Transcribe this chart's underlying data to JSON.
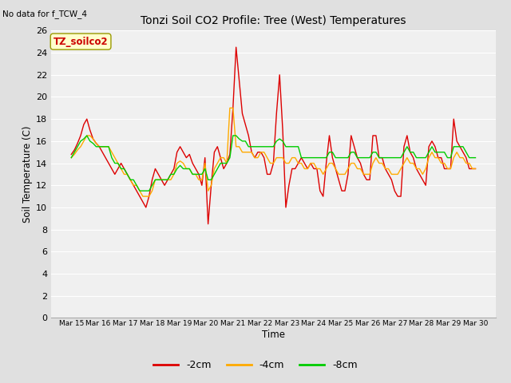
{
  "title": "Tonzi Soil CO2 Profile: Tree (West) Temperatures",
  "subtitle": "No data for f_TCW_4",
  "ylabel": "Soil Temperature (C)",
  "xlabel": "Time",
  "box_label": "TZ_soilco2",
  "ylim": [
    0,
    26
  ],
  "yticks": [
    0,
    2,
    4,
    6,
    8,
    10,
    12,
    14,
    16,
    18,
    20,
    22,
    24,
    26
  ],
  "xtick_labels": [
    "Mar 15",
    "Mar 16",
    "Mar 17",
    "Mar 18",
    "Mar 19",
    "Mar 20",
    "Mar 21",
    "Mar 22",
    "Mar 23",
    "Mar 24",
    "Mar 25",
    "Mar 26",
    "Mar 27",
    "Mar 28",
    "Mar 29",
    "Mar 30"
  ],
  "legend_entries": [
    "-2cm",
    "-4cm",
    "-8cm"
  ],
  "legend_colors": [
    "#dd0000",
    "#ffaa00",
    "#00cc00"
  ],
  "fig_bg_color": "#e0e0e0",
  "plot_bg_color": "#f0f0f0",
  "grid_color": "#ffffff",
  "line_width": 1.0,
  "series_2cm": [
    14.8,
    15.2,
    15.8,
    16.5,
    17.5,
    18.0,
    17.0,
    16.2,
    15.8,
    15.5,
    15.0,
    14.5,
    14.0,
    13.5,
    13.0,
    13.5,
    14.0,
    13.5,
    13.0,
    12.5,
    12.0,
    11.5,
    11.0,
    10.5,
    10.0,
    11.0,
    12.5,
    13.5,
    13.0,
    12.5,
    12.0,
    12.5,
    13.0,
    13.5,
    15.0,
    15.5,
    15.0,
    14.5,
    14.8,
    14.0,
    13.5,
    13.0,
    12.0,
    14.5,
    8.5,
    12.0,
    15.0,
    15.5,
    14.5,
    13.5,
    14.0,
    14.8,
    19.0,
    24.5,
    21.5,
    18.5,
    17.5,
    16.5,
    15.0,
    14.5,
    15.0,
    15.0,
    14.5,
    13.0,
    13.0,
    14.0,
    18.5,
    22.0,
    17.0,
    10.0,
    12.0,
    13.5,
    13.5,
    14.0,
    14.5,
    14.0,
    13.5,
    14.0,
    13.5,
    13.5,
    11.5,
    11.0,
    14.0,
    16.5,
    14.5,
    13.5,
    12.5,
    11.5,
    11.5,
    13.0,
    16.5,
    15.5,
    14.5,
    14.0,
    13.0,
    12.5,
    12.5,
    16.5,
    16.5,
    14.5,
    14.5,
    13.5,
    13.0,
    12.5,
    11.5,
    11.0,
    11.0,
    15.5,
    16.5,
    15.0,
    14.5,
    13.5,
    13.0,
    12.5,
    12.0,
    15.5,
    16.0,
    15.5,
    14.5,
    14.5,
    13.5,
    13.5,
    13.5,
    18.0,
    16.0,
    15.5,
    15.0,
    14.5,
    13.5,
    13.5,
    13.5
  ],
  "series_4cm": [
    14.5,
    14.8,
    15.2,
    15.5,
    16.0,
    16.5,
    16.5,
    16.2,
    15.8,
    15.5,
    15.5,
    15.5,
    15.5,
    15.0,
    14.5,
    14.0,
    13.5,
    13.0,
    13.0,
    12.5,
    12.0,
    12.0,
    11.5,
    11.0,
    11.0,
    11.0,
    11.5,
    12.5,
    12.5,
    12.5,
    12.5,
    12.5,
    12.5,
    13.0,
    14.0,
    14.2,
    14.0,
    13.5,
    13.5,
    13.0,
    13.0,
    12.5,
    12.5,
    14.0,
    11.5,
    12.0,
    13.5,
    14.0,
    14.5,
    14.5,
    14.0,
    19.0,
    19.0,
    15.5,
    15.5,
    15.0,
    15.0,
    15.0,
    15.0,
    14.5,
    14.5,
    15.0,
    15.0,
    14.5,
    14.0,
    14.0,
    14.5,
    14.5,
    14.5,
    14.0,
    14.0,
    14.5,
    14.5,
    14.0,
    14.0,
    13.5,
    13.5,
    14.0,
    14.0,
    13.5,
    13.5,
    13.0,
    13.5,
    14.0,
    14.0,
    13.5,
    13.0,
    13.0,
    13.0,
    13.5,
    14.0,
    14.0,
    13.5,
    13.5,
    13.0,
    13.0,
    13.0,
    14.0,
    14.5,
    14.0,
    14.0,
    13.5,
    13.5,
    13.0,
    13.0,
    13.0,
    13.5,
    14.0,
    14.5,
    14.0,
    14.0,
    13.5,
    13.5,
    13.0,
    13.5,
    14.5,
    15.0,
    14.5,
    14.5,
    14.0,
    14.0,
    13.5,
    13.5,
    14.5,
    15.0,
    14.5,
    14.5,
    14.0,
    14.0,
    13.5,
    13.5
  ],
  "series_8cm": [
    14.5,
    15.0,
    15.5,
    16.0,
    16.2,
    16.5,
    16.0,
    15.8,
    15.5,
    15.5,
    15.5,
    15.5,
    15.5,
    14.5,
    14.0,
    14.0,
    13.5,
    13.5,
    13.0,
    12.5,
    12.5,
    12.0,
    11.5,
    11.5,
    11.5,
    11.5,
    12.0,
    12.5,
    12.5,
    12.5,
    12.5,
    12.5,
    13.0,
    13.0,
    13.5,
    13.8,
    13.5,
    13.5,
    13.5,
    13.0,
    13.0,
    13.0,
    13.0,
    13.5,
    12.5,
    12.5,
    13.0,
    13.5,
    14.0,
    14.0,
    14.0,
    14.5,
    16.5,
    16.5,
    16.2,
    16.0,
    16.0,
    15.5,
    15.5,
    15.5,
    15.5,
    15.5,
    15.5,
    15.5,
    15.5,
    15.5,
    16.0,
    16.2,
    16.0,
    15.5,
    15.5,
    15.5,
    15.5,
    15.5,
    14.5,
    14.5,
    14.5,
    14.5,
    14.5,
    14.5,
    14.5,
    14.5,
    14.5,
    15.0,
    15.0,
    14.5,
    14.5,
    14.5,
    14.5,
    14.5,
    15.0,
    15.0,
    14.5,
    14.5,
    14.5,
    14.5,
    14.5,
    15.0,
    15.0,
    14.5,
    14.5,
    14.5,
    14.5,
    14.5,
    14.5,
    14.5,
    14.5,
    15.0,
    15.5,
    15.0,
    15.0,
    14.5,
    14.5,
    14.5,
    14.5,
    15.0,
    15.5,
    15.0,
    15.0,
    15.0,
    15.0,
    14.5,
    14.5,
    15.5,
    15.5,
    15.5,
    15.5,
    15.0,
    14.5,
    14.5,
    14.5
  ]
}
